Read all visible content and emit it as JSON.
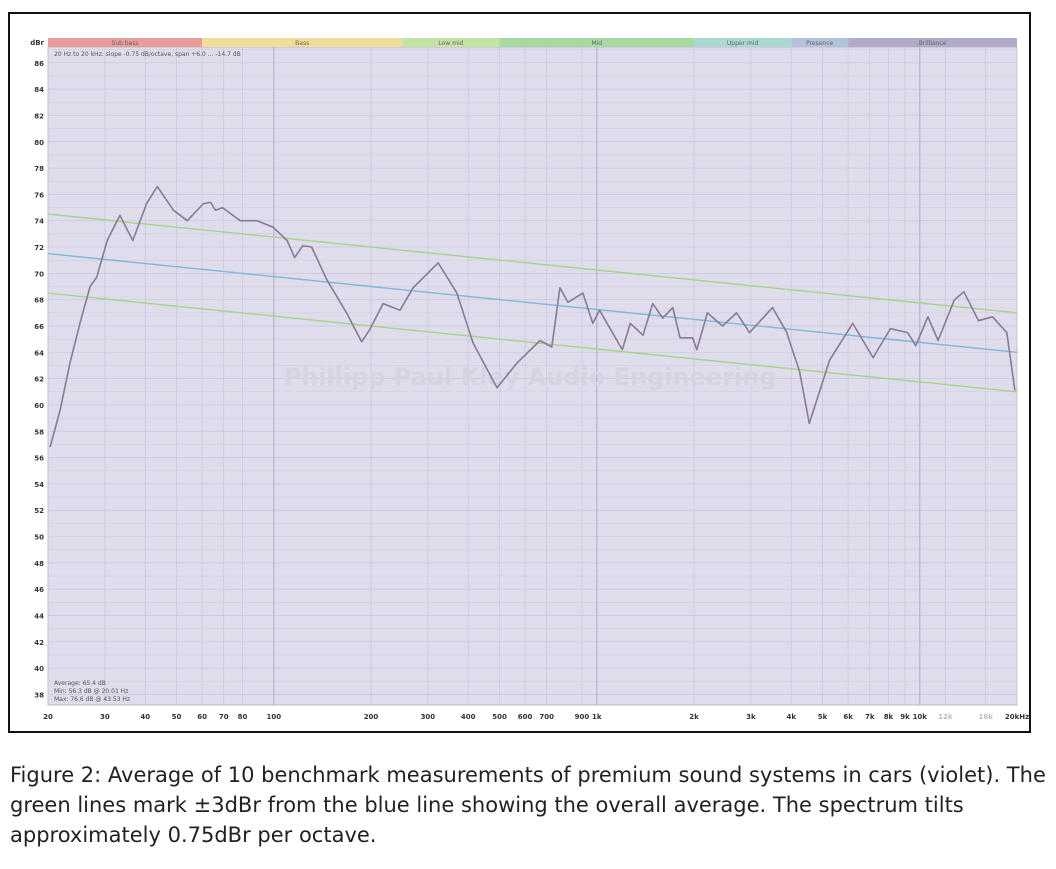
{
  "figure": {
    "caption": "Figure 2: Average of 10 benchmark measurements of premium sound systems in cars (violet). The green lines mark ±3dBr from the blue line showing the overall average. The spectrum tilts approximately 0.75dBr per octave.",
    "watermark": "Phillipp Paul Kley Audio Engineering"
  },
  "chart_data": {
    "type": "line",
    "title": "",
    "xlabel": "",
    "ylabel": "dBr",
    "x_scale": "log",
    "xlim": [
      20,
      20000
    ],
    "ylim": [
      37.2,
      87.2
    ],
    "grid": true,
    "info_text": "20 Hz to 20 kHz: slope -0.75 dB/octave, span +6.0 ... -14.7 dB",
    "stats": [
      "Average: 65.4 dB",
      "Min: 56.3 dB @ 20.01 Hz",
      "Max: 76.6 dB @ 43.53 Hz"
    ],
    "y_ticks": [
      86,
      84,
      82,
      80,
      78,
      76,
      74,
      72,
      70,
      68,
      66,
      64,
      62,
      60,
      58,
      56,
      54,
      52,
      50,
      48,
      46,
      44,
      42,
      40,
      38
    ],
    "x_ticks": [
      {
        "value": 20,
        "label": "20"
      },
      {
        "value": 30,
        "label": "30"
      },
      {
        "value": 40,
        "label": "40"
      },
      {
        "value": 50,
        "label": "50"
      },
      {
        "value": 60,
        "label": "60"
      },
      {
        "value": 70,
        "label": "70"
      },
      {
        "value": 80,
        "label": "80"
      },
      {
        "value": 100,
        "label": "100"
      },
      {
        "value": 200,
        "label": "200"
      },
      {
        "value": 300,
        "label": "300"
      },
      {
        "value": 400,
        "label": "400"
      },
      {
        "value": 500,
        "label": "500"
      },
      {
        "value": 600,
        "label": "600"
      },
      {
        "value": 700,
        "label": "700"
      },
      {
        "value": 900,
        "label": "900"
      },
      {
        "value": 1000,
        "label": "1k"
      },
      {
        "value": 2000,
        "label": "2k"
      },
      {
        "value": 3000,
        "label": "3k"
      },
      {
        "value": 4000,
        "label": "4k"
      },
      {
        "value": 5000,
        "label": "5k"
      },
      {
        "value": 6000,
        "label": "6k"
      },
      {
        "value": 7000,
        "label": "7k"
      },
      {
        "value": 8000,
        "label": "8k"
      },
      {
        "value": 9000,
        "label": "9k"
      },
      {
        "value": 10000,
        "label": "10k"
      },
      {
        "value": 12000,
        "label": "12k",
        "faint": true
      },
      {
        "value": 16000,
        "label": "16k",
        "faint": true
      },
      {
        "value": 20000,
        "label": "20kHz"
      }
    ],
    "bands": [
      {
        "label": "Sub bass",
        "from": 20,
        "to": 60,
        "color": "#e99c9c"
      },
      {
        "label": "Bass",
        "from": 60,
        "to": 250,
        "color": "#f1dc9a"
      },
      {
        "label": "Low mid",
        "from": 250,
        "to": 500,
        "color": "#c4e2a2"
      },
      {
        "label": "Mid",
        "from": 500,
        "to": 2000,
        "color": "#a9d9a3"
      },
      {
        "label": "Upper mid",
        "from": 2000,
        "to": 4000,
        "color": "#a9d9d2"
      },
      {
        "label": "Presence",
        "from": 4000,
        "to": 6000,
        "color": "#b2c2da"
      },
      {
        "label": "Brilliance",
        "from": 6000,
        "to": 20000,
        "color": "#b3aac9"
      }
    ],
    "colors": {
      "background": "#dfdcec",
      "grid": "#c9c6dc",
      "axis_text": "#333333"
    },
    "series": [
      {
        "color": "#8a7a9a",
        "role": "average of 10 measurements",
        "x": [
          20.3,
          21.8,
          23.4,
          25.1,
          27.0,
          28.3,
          30.5,
          33.4,
          36.6,
          40.4,
          43.6,
          48.9,
          54.0,
          60.6,
          63.7,
          66.0,
          69.3,
          78.8,
          88.8,
          99.6,
          110,
          116,
          123,
          131,
          146,
          168,
          187,
          198,
          218,
          246,
          270,
          323,
          369,
          414,
          491,
          567,
          667,
          726,
          769,
          814,
          906,
          972,
          1020,
          1200,
          1270,
          1390,
          1490,
          1600,
          1720,
          1810,
          1980,
          2040,
          2200,
          2450,
          2710,
          2970,
          3500,
          3860,
          4240,
          4550,
          5260,
          6200,
          7170,
          8110,
          9170,
          9720,
          10600,
          11400,
          12800,
          13700,
          15200,
          16800,
          18600,
          19700
        ],
        "y": [
          56.8,
          59.6,
          63.2,
          66.2,
          69.0,
          69.7,
          72.5,
          74.4,
          72.5,
          75.3,
          76.6,
          74.8,
          74.0,
          75.3,
          75.4,
          74.8,
          75.0,
          74.0,
          74.0,
          73.5,
          72.5,
          71.2,
          72.1,
          72.0,
          69.5,
          67.0,
          64.8,
          65.7,
          67.7,
          67.2,
          68.9,
          70.8,
          68.5,
          64.7,
          61.3,
          63.2,
          64.9,
          64.4,
          68.9,
          67.8,
          68.5,
          66.2,
          67.2,
          64.2,
          66.2,
          65.3,
          67.7,
          66.6,
          67.4,
          65.1,
          65.1,
          64.2,
          67.0,
          66.0,
          67.0,
          65.5,
          67.4,
          65.6,
          62.6,
          58.6,
          63.4,
          66.2,
          63.6,
          65.8,
          65.5,
          64.5,
          66.7,
          64.9,
          68.0,
          68.6,
          66.4,
          66.7,
          65.5,
          61.1
        ]
      },
      {
        "color": "#7fb8d8",
        "role": "overall average trend",
        "x": [
          20,
          20000
        ],
        "y": [
          71.5,
          64.0
        ]
      },
      {
        "color": "#a8d488",
        "role": "+3 dBr",
        "x": [
          20,
          20000
        ],
        "y": [
          74.5,
          67.0
        ]
      },
      {
        "color": "#a8d488",
        "role": "-3 dBr",
        "x": [
          20,
          20000
        ],
        "y": [
          68.5,
          61.0
        ]
      }
    ]
  }
}
